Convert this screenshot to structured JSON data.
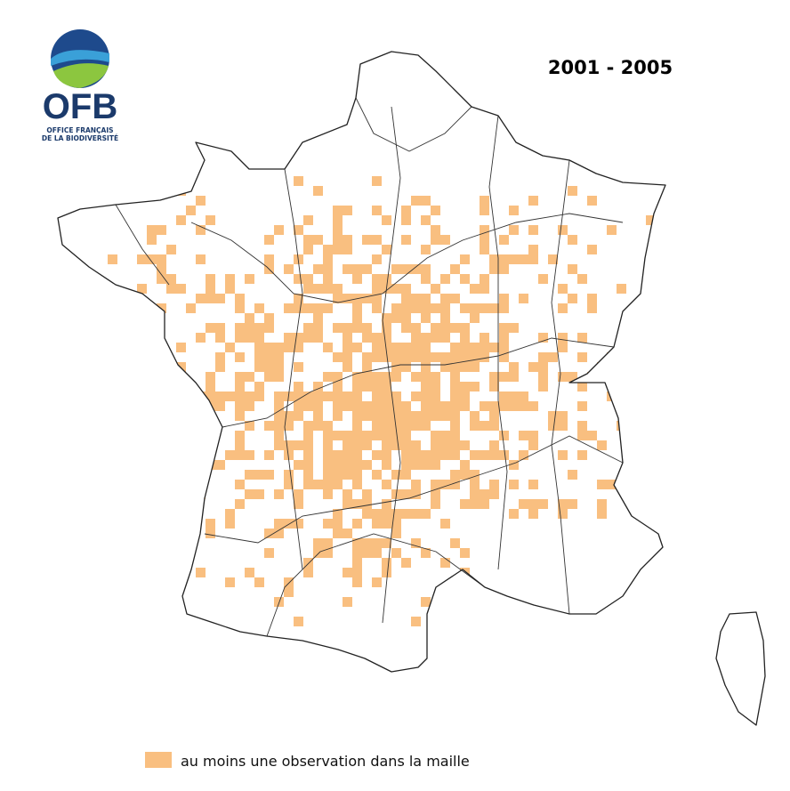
{
  "logo": {
    "name": "OFB",
    "subtitle_lines": [
      "OFFICE FRANÇAIS",
      "DE LA BIODIVERSITÉ"
    ]
  },
  "period": "2001 - 2005",
  "legend": {
    "label": "au moins une observation dans la maille",
    "color": "#f9bf80"
  }
}
